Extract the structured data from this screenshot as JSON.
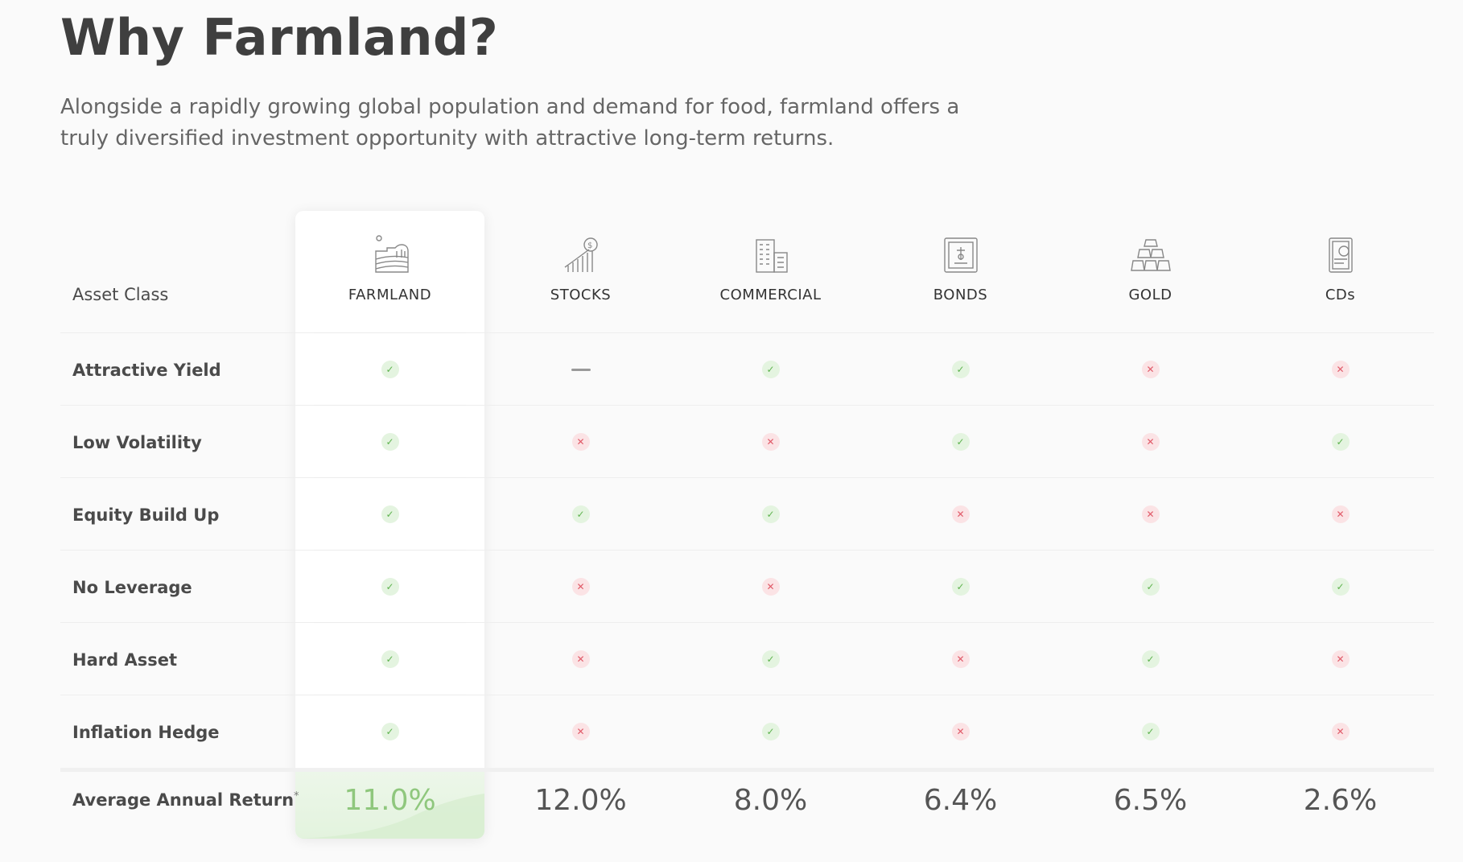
{
  "page": {
    "title": "Why Farmland?",
    "intro": "Alongside a rapidly growing global population and demand for food, farmland offers a truly diversified investment opportunity with attractive long-term returns."
  },
  "table": {
    "header_label": "Asset Class",
    "columns": [
      {
        "name": "FARMLAND",
        "icon": "farm-icon",
        "highlight": true
      },
      {
        "name": "STOCKS",
        "icon": "stocks-icon",
        "highlight": false
      },
      {
        "name": "COMMERCIAL",
        "icon": "building-icon",
        "highlight": false
      },
      {
        "name": "BONDS",
        "icon": "bond-certificate-icon",
        "highlight": false
      },
      {
        "name": "GOLD",
        "icon": "gold-bars-icon",
        "highlight": false
      },
      {
        "name": "CDs",
        "icon": "cd-money-icon",
        "highlight": false
      }
    ],
    "rows": [
      {
        "label": "Attractive Yield",
        "values": [
          "yes",
          "neutral",
          "yes",
          "yes",
          "no",
          "no"
        ]
      },
      {
        "label": "Low Volatility",
        "values": [
          "yes",
          "no",
          "no",
          "yes",
          "no",
          "yes"
        ]
      },
      {
        "label": "Equity Build Up",
        "values": [
          "yes",
          "yes",
          "yes",
          "no",
          "no",
          "no"
        ]
      },
      {
        "label": "No Leverage",
        "values": [
          "yes",
          "no",
          "no",
          "yes",
          "yes",
          "yes"
        ]
      },
      {
        "label": "Hard Asset",
        "values": [
          "yes",
          "no",
          "yes",
          "no",
          "yes",
          "no"
        ]
      },
      {
        "label": "Inflation Hedge",
        "values": [
          "yes",
          "no",
          "yes",
          "no",
          "yes",
          "no"
        ]
      }
    ],
    "return_row": {
      "label": "Average Annual Return",
      "footnote_mark": "*",
      "values": [
        "11.0%",
        "12.0%",
        "8.0%",
        "6.4%",
        "6.5%",
        "2.6%"
      ]
    },
    "colors": {
      "yes": "#5fb34f",
      "no": "#e05a68",
      "highlight_return": "#8fc77d"
    }
  }
}
